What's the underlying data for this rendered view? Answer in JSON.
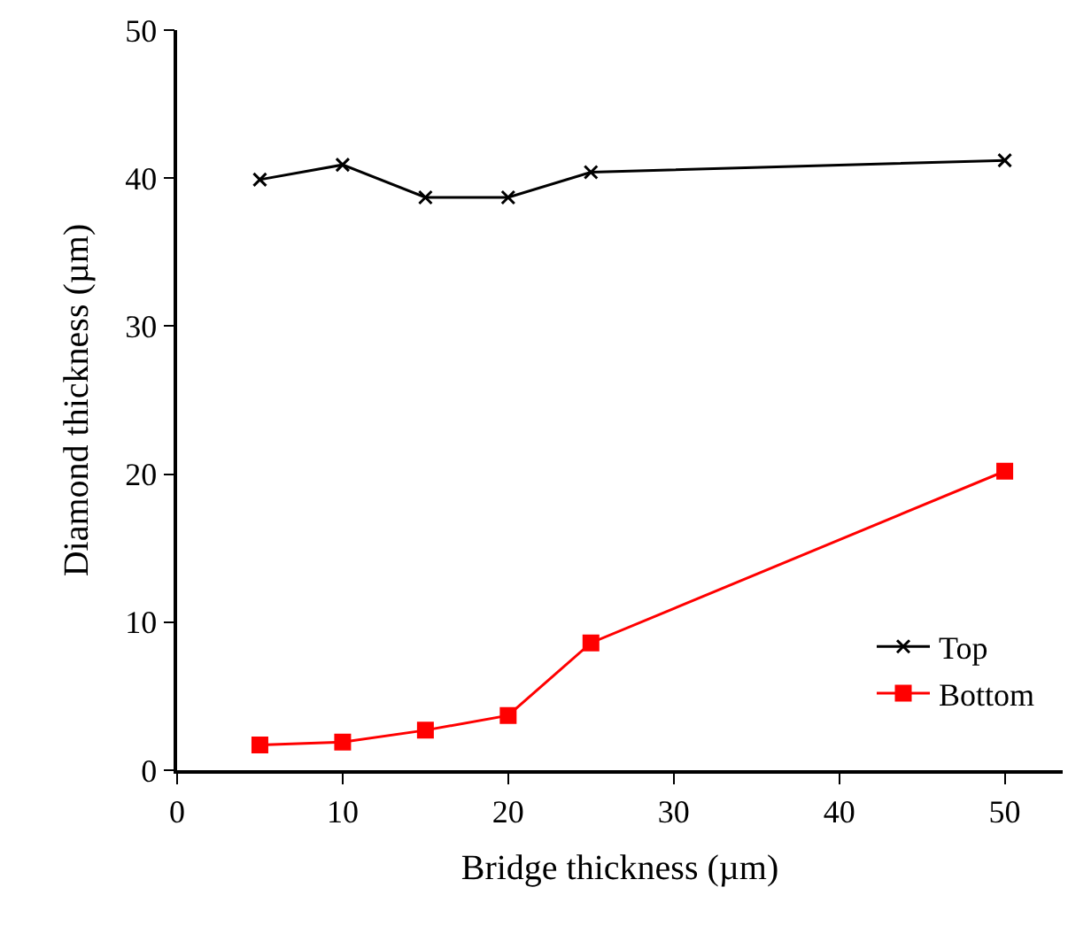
{
  "chart_data": {
    "type": "line",
    "xlabel": "Bridge thickness (µm)",
    "ylabel": "Diamond thickness (µm)",
    "x": [
      5,
      10,
      15,
      20,
      25,
      50
    ],
    "series": [
      {
        "name": "Top",
        "color": "#000000",
        "values": [
          39.9,
          40.9,
          38.7,
          38.7,
          40.4,
          41.2
        ],
        "marker": "cross"
      },
      {
        "name": "Bottom",
        "color": "#ff0000",
        "values": [
          1.7,
          1.9,
          2.7,
          3.7,
          8.6,
          20.2
        ],
        "marker": "square"
      }
    ],
    "xlim": [
      0,
      53.5
    ],
    "xticks": [
      0,
      10,
      20,
      30,
      40,
      50
    ],
    "ylim": [
      0,
      50
    ],
    "yticks": [
      0,
      10,
      20,
      30,
      40,
      50
    ],
    "legend": "bottom right",
    "line_style": "solid"
  }
}
